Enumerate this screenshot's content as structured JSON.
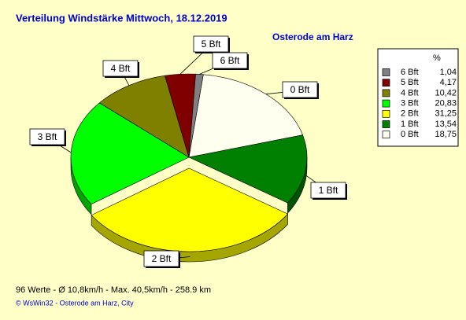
{
  "chart_data": {
    "type": "pie3d",
    "title": "Verteilung Windstärke  Mittwoch, 18.12.2019",
    "subtitle": "Osterode am Harz",
    "legend_header": "%",
    "categories": [
      "0 Bft",
      "1 Bft",
      "2 Bft",
      "3 Bft",
      "4 Bft",
      "5 Bft",
      "6 Bft"
    ],
    "values": [
      18.75,
      13.54,
      31.25,
      20.83,
      10.42,
      4.17,
      1.04
    ],
    "value_labels": [
      "18,75",
      "13,54",
      "31,25",
      "20,83",
      "10,42",
      "4,17",
      "1,04"
    ],
    "colors": [
      "#fffff0",
      "#008000",
      "#ffff00",
      "#00ff00",
      "#808000",
      "#800000",
      "#808080"
    ],
    "exploded": "2 Bft",
    "legend": "right",
    "footer": "96 Werte   -   Ø 10,8km/h   -  Max. 40,5km/h   -   258.9 km",
    "credit": "© WsWin32  -  Osterode am Harz, City"
  }
}
